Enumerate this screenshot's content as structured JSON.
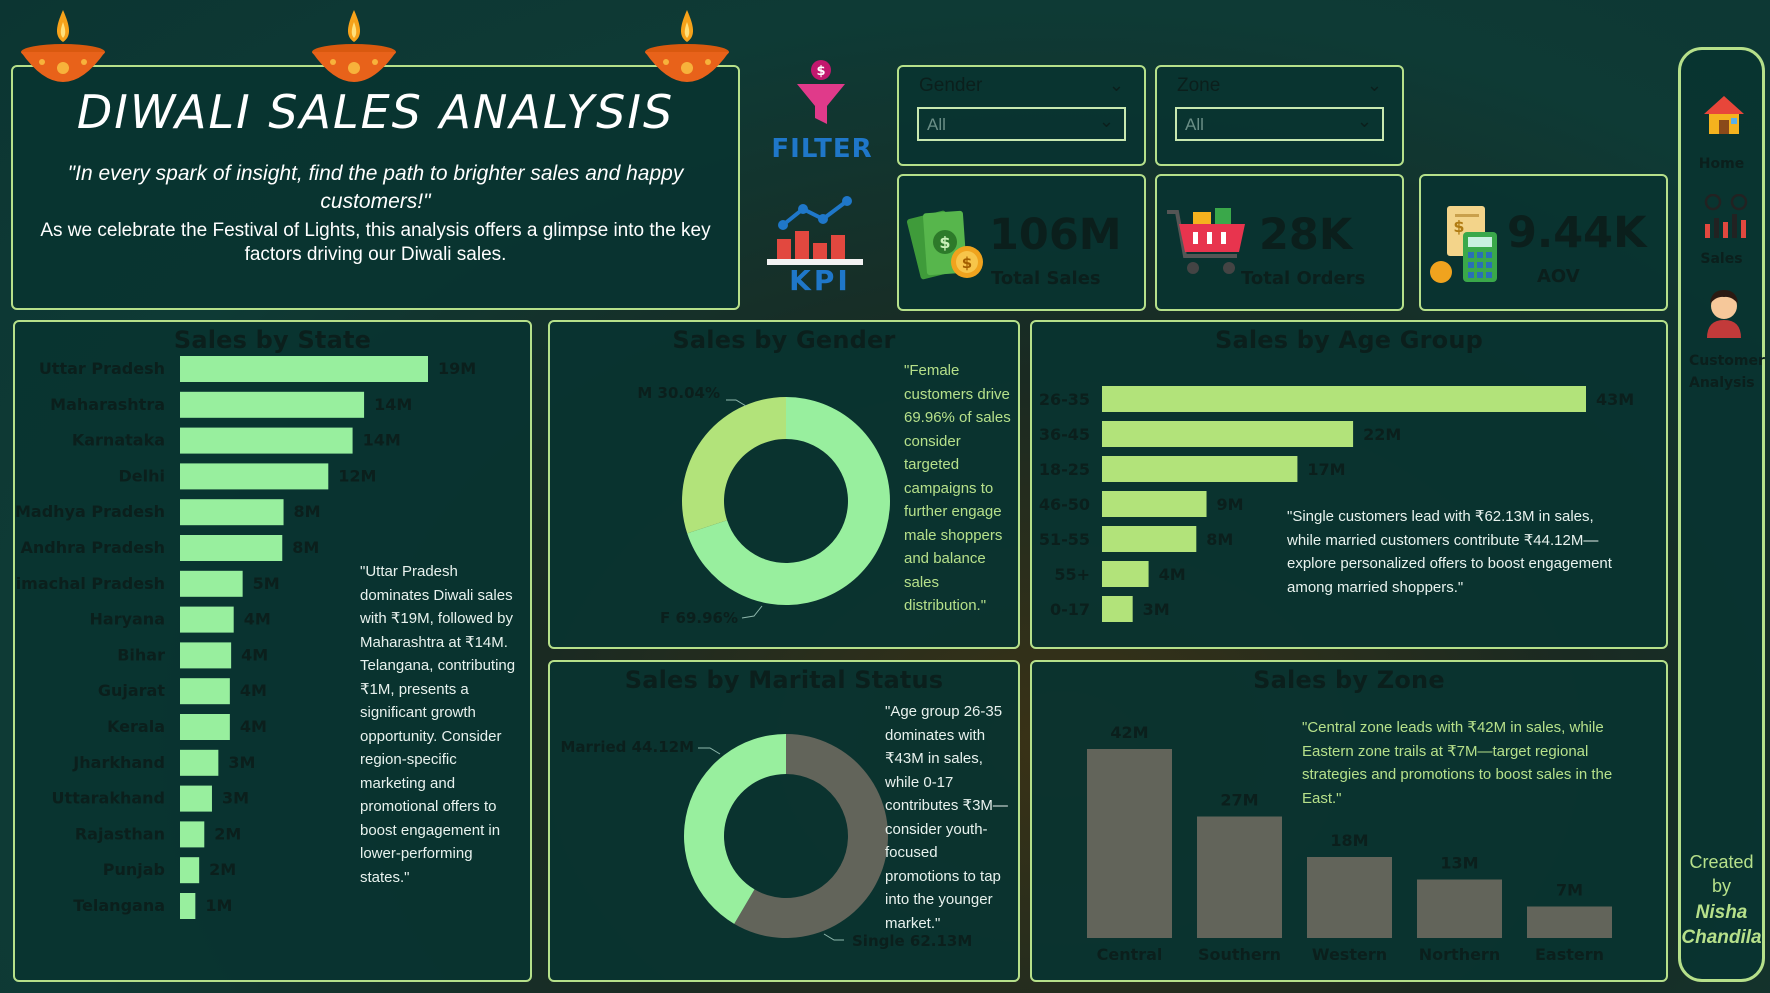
{
  "header": {
    "title": "DIWALI SALES ANALYSIS",
    "quote": "\"In every spark of insight, find the path to brighter sales and happy customers!\"",
    "description": "As we celebrate the Festival of Lights, this analysis offers a glimpse into the key factors driving our Diwali sales."
  },
  "filter_label": "FILTER",
  "kpi_label": "KPI",
  "slicers": [
    {
      "label": "Gender",
      "value": "All"
    },
    {
      "label": "Zone",
      "value": "All"
    }
  ],
  "kpis": [
    {
      "value": "106M",
      "label": "Total Sales",
      "icon": "money-icon"
    },
    {
      "value": "28K",
      "label": "Total Orders",
      "icon": "shopping-cart-icon"
    },
    {
      "value": "9.44K",
      "label": "AOV",
      "icon": "calculator-icon"
    }
  ],
  "nav": [
    {
      "label": "Home",
      "icon": "home-icon"
    },
    {
      "label": "Sales",
      "icon": "sales-icon"
    },
    {
      "label": "Customer Analysis",
      "icon": "customer-icon"
    }
  ],
  "credit": {
    "line1": "Created",
    "line2": "by",
    "name1": "Nisha",
    "name2": "Chandila"
  },
  "colors": {
    "bar_light": "#98ef9e",
    "bar_age": "#b2e37a",
    "donut_dark": "#62645a",
    "border": "#b6e08a",
    "panel": "#093430"
  },
  "state_panel": {
    "title": "Sales by State",
    "note": "\"Uttar Pradesh dominates Diwali sales with ₹19M, followed by Maharashtra at ₹14M. Telangana, contributing ₹1M, presents a significant growth opportunity. Consider region-specific marketing and promotional offers to boost engagement in lower-performing states.\""
  },
  "gender_panel": {
    "title": "Sales by Gender",
    "note": "\"Female customers drive 69.96% of sales consider targeted campaigns to further engage male shoppers and balance sales distribution.\""
  },
  "age_panel": {
    "title": "Sales by Age Group",
    "note": "\"Single customers lead with ₹62.13M in sales, while married customers contribute ₹44.12M—explore personalized offers to boost engagement among married shoppers.\""
  },
  "marital_panel": {
    "title": "Sales by Marital Status",
    "note": "\"Age group 26-35 dominates with ₹43M in sales, while 0-17 contributes ₹3M—consider youth-focused promotions to tap into the younger market.\""
  },
  "zone_panel": {
    "title": "Sales by Zone",
    "note": "\"Central zone leads with ₹42M in sales, while Eastern zone trails at ₹7M—target regional strategies and promotions to boost sales in the East.\""
  },
  "chart_data": [
    {
      "type": "bar",
      "orientation": "horizontal",
      "title": "Sales by State",
      "categories": [
        "Uttar Pradesh",
        "Maharashtra",
        "Karnataka",
        "Delhi",
        "Madhya Pradesh",
        "Andhra Pradesh",
        "Himachal Pradesh",
        "Haryana",
        "Bihar",
        "Gujarat",
        "Kerala",
        "Jharkhand",
        "Uttarakhand",
        "Rajasthan",
        "Punjab",
        "Telangana"
      ],
      "values": [
        19.4,
        14.4,
        13.5,
        11.6,
        8.1,
        8.0,
        4.9,
        4.2,
        4.0,
        3.9,
        3.9,
        3.0,
        2.5,
        1.9,
        1.5,
        1.2
      ],
      "labels": [
        "19M",
        "14M",
        "14M",
        "12M",
        "8M",
        "8M",
        "5M",
        "4M",
        "4M",
        "4M",
        "4M",
        "3M",
        "3M",
        "2M",
        "2M",
        "1M"
      ]
    },
    {
      "type": "pie",
      "donut": true,
      "title": "Sales by Gender",
      "categories": [
        "F",
        "M"
      ],
      "values": [
        69.96,
        30.04
      ],
      "labels": [
        "F 69.96%",
        "M 30.04%"
      ]
    },
    {
      "type": "bar",
      "orientation": "horizontal",
      "title": "Sales by Age Group",
      "categories": [
        "26-35",
        "36-45",
        "18-25",
        "46-50",
        "51-55",
        "55+",
        "0-17"
      ],
      "values": [
        42.6,
        22.1,
        17.2,
        9.2,
        8.3,
        4.1,
        2.7
      ],
      "labels": [
        "43M",
        "22M",
        "17M",
        "9M",
        "8M",
        "4M",
        "3M"
      ]
    },
    {
      "type": "pie",
      "donut": true,
      "title": "Sales by Marital Status",
      "categories": [
        "Single",
        "Married"
      ],
      "values": [
        62.13,
        44.12
      ],
      "labels": [
        "Single 62.13M",
        "Married 44.12M"
      ]
    },
    {
      "type": "bar",
      "orientation": "vertical",
      "title": "Sales by Zone",
      "categories": [
        "Central",
        "Southern",
        "Western",
        "Northern",
        "Eastern"
      ],
      "values": [
        42,
        27,
        18,
        13,
        7
      ],
      "labels": [
        "42M",
        "27M",
        "18M",
        "13M",
        "7M"
      ]
    }
  ]
}
